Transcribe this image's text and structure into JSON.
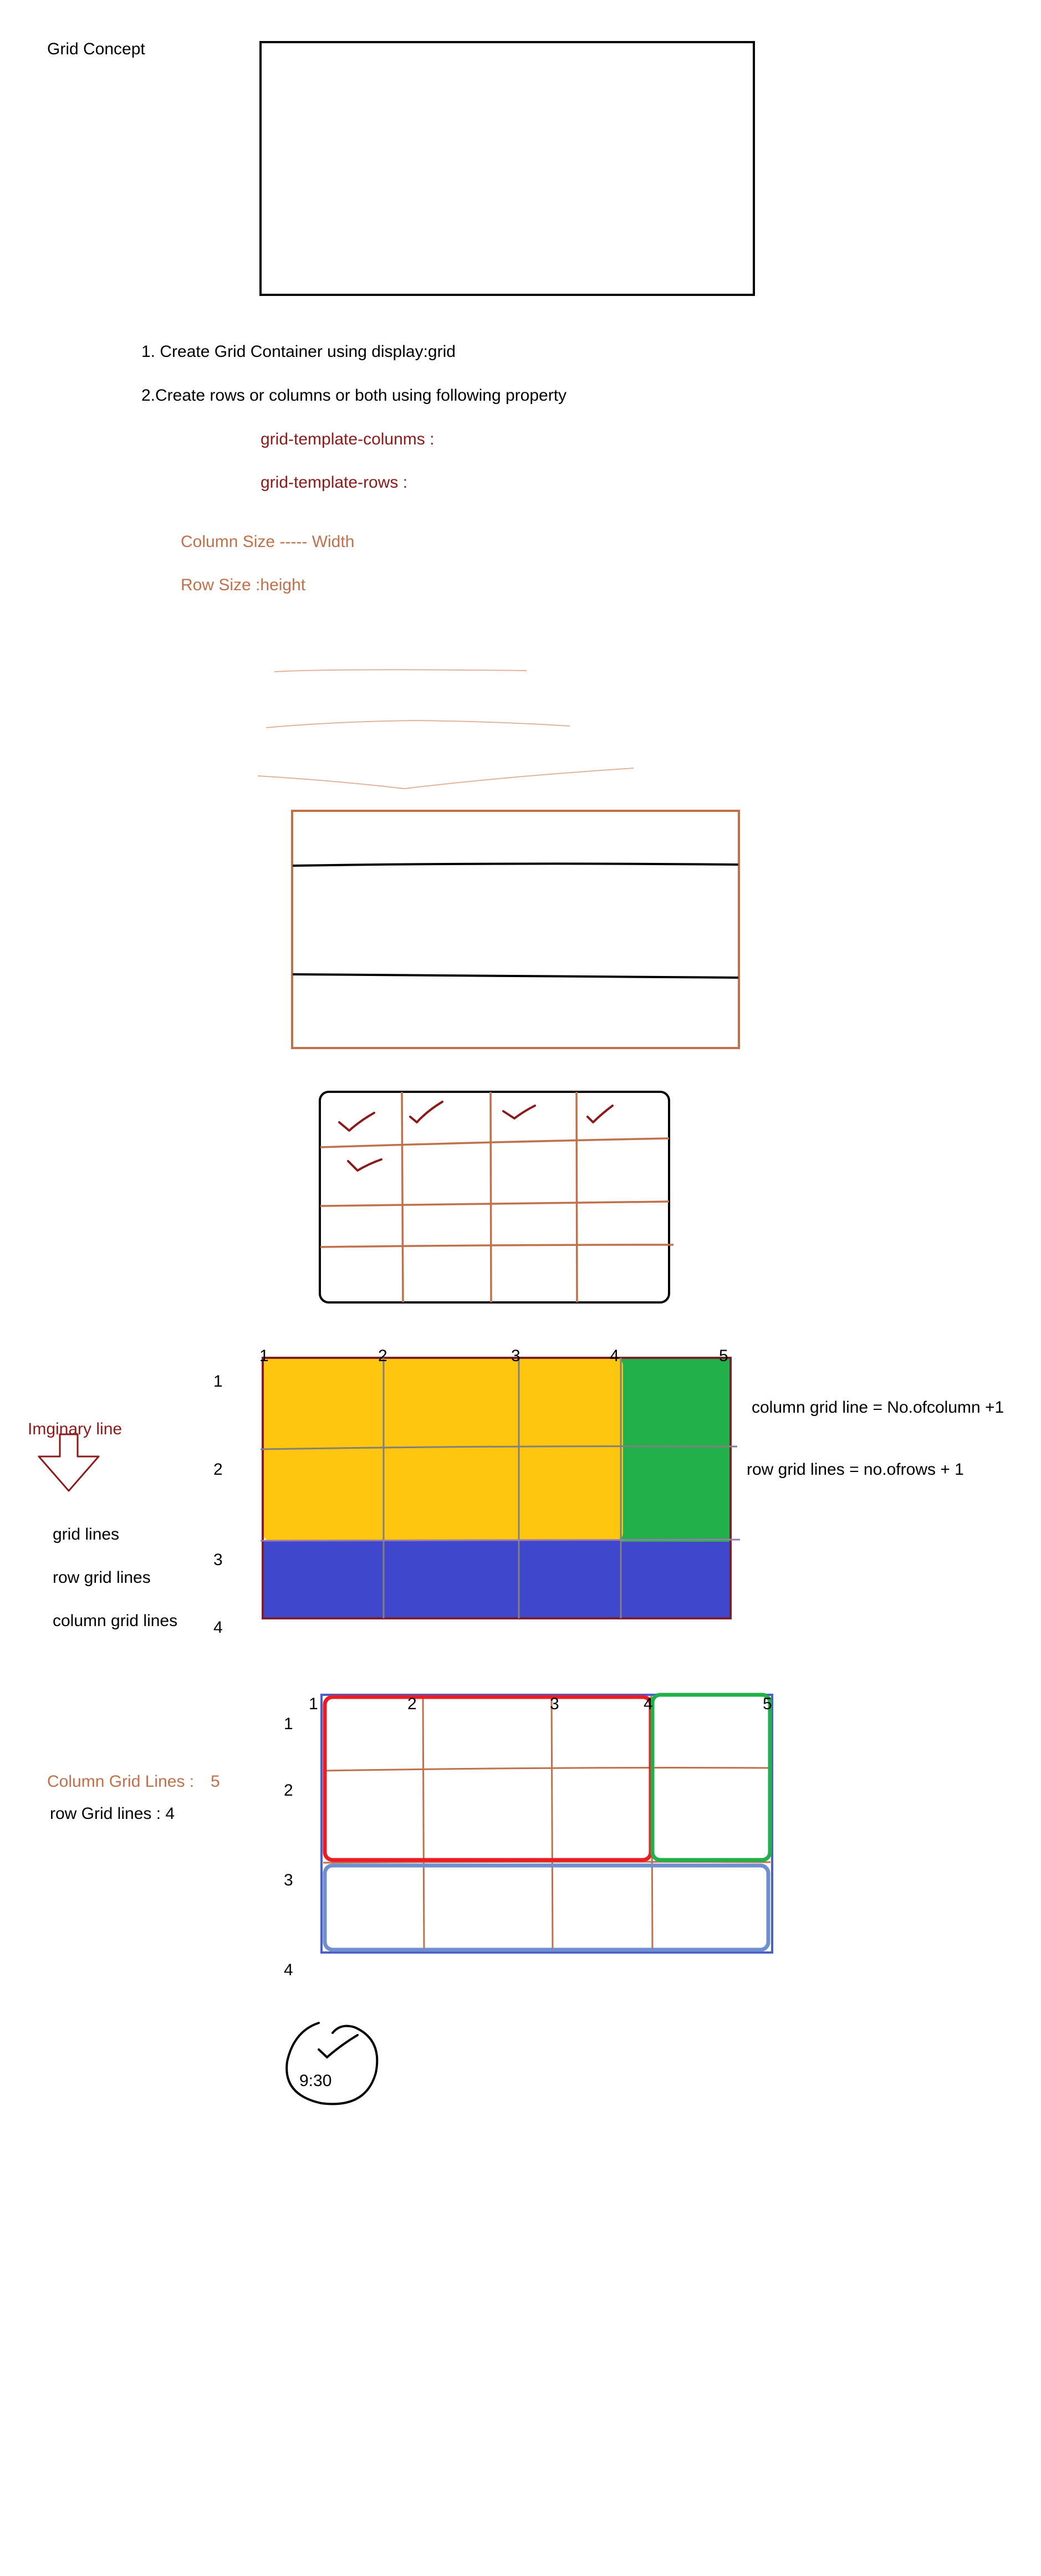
{
  "colors": {
    "ink": "#000000",
    "dark_red": "#8b1a1a",
    "brown": "#c0704a",
    "yellow": "#fec60f",
    "green": "#22b04b",
    "blue": "#3f48cc",
    "red_outline": "#ed1c24",
    "green_outline": "#22b04b",
    "blue_outline": "#6f8fd0"
  },
  "title": "Grid Concept",
  "steps": {
    "step1": "1. Create Grid Container using display:grid",
    "step2": "2.Create rows or columns or both using following property",
    "prop1": "grid-template-colunms :",
    "prop2": "grid-template-rows :"
  },
  "sizes": {
    "column": "Column Size ----- Width",
    "row": "Row Size :height"
  },
  "diagram3": {
    "col_numbers": [
      "1",
      "2",
      "3",
      "4",
      "5"
    ],
    "row_numbers": [
      "1",
      "2",
      "3",
      "4"
    ],
    "imaginary_line": "Imginary line",
    "grid_lines": "grid lines",
    "row_grid_lines": "row grid lines",
    "column_grid_lines": "column grid lines",
    "col_formula": "column grid line = No.ofcolumn +1",
    "row_formula": "row grid lines = no.ofrows + 1"
  },
  "diagram4": {
    "col_numbers": [
      "1",
      "2",
      "3",
      "4",
      "5"
    ],
    "row_numbers": [
      "1",
      "2",
      "3",
      "4"
    ],
    "column_count_label": "Column Grid Lines :",
    "column_count_value": "5",
    "row_count_label": "row Grid lines : 4"
  },
  "note": {
    "time": "9:30"
  }
}
